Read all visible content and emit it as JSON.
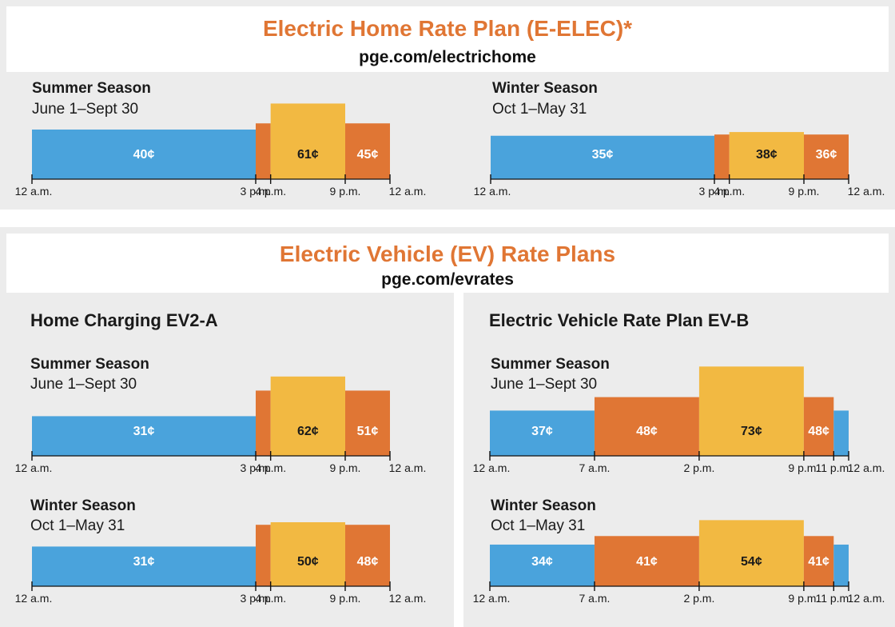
{
  "colors": {
    "off_peak": "#4aa3dc",
    "part_peak": "#e07634",
    "peak": "#f2b942",
    "title": "#e07634"
  },
  "elec": {
    "title": "Electric Home Rate Plan (E-ELEC)*",
    "url": "pge.com/electrichome"
  },
  "ev": {
    "title": "Electric Vehicle (EV) Rate Plans",
    "url": "pge.com/evrates",
    "ev2a_title": "Home Charging EV2-A",
    "evb_title": "Electric Vehicle Rate Plan EV-B"
  },
  "chart_data": [
    {
      "id": "elec-summer",
      "type": "bar",
      "title": "Summer Season",
      "subtitle": "June 1–Sept 30",
      "ticks": [
        {
          "hour": 0,
          "label": "12 a.m."
        },
        {
          "hour": 15,
          "label": "3 p.m."
        },
        {
          "hour": 16,
          "label": "4 p.m."
        },
        {
          "hour": 21,
          "label": "9 p.m."
        },
        {
          "hour": 24,
          "label": "12 a.m."
        }
      ],
      "segments": [
        {
          "start": 0,
          "end": 15,
          "value": 40,
          "label": "40¢",
          "tier": "off_peak"
        },
        {
          "start": 15,
          "end": 16,
          "value": 45,
          "label": "",
          "tier": "part_peak"
        },
        {
          "start": 16,
          "end": 21,
          "value": 61,
          "label": "61¢",
          "tier": "peak"
        },
        {
          "start": 21,
          "end": 24,
          "value": 45,
          "label": "45¢",
          "tier": "part_peak"
        }
      ]
    },
    {
      "id": "elec-winter",
      "type": "bar",
      "title": "Winter Season",
      "subtitle": "Oct 1–May 31",
      "ticks": [
        {
          "hour": 0,
          "label": "12 a.m."
        },
        {
          "hour": 15,
          "label": "3 p.m."
        },
        {
          "hour": 16,
          "label": "4 p.m."
        },
        {
          "hour": 21,
          "label": "9 p.m."
        },
        {
          "hour": 24,
          "label": "12 a.m."
        }
      ],
      "segments": [
        {
          "start": 0,
          "end": 15,
          "value": 35,
          "label": "35¢",
          "tier": "off_peak"
        },
        {
          "start": 15,
          "end": 16,
          "value": 36,
          "label": "",
          "tier": "part_peak"
        },
        {
          "start": 16,
          "end": 21,
          "value": 38,
          "label": "38¢",
          "tier": "peak"
        },
        {
          "start": 21,
          "end": 24,
          "value": 36,
          "label": "36¢",
          "tier": "part_peak"
        }
      ]
    },
    {
      "id": "ev2a-summer",
      "type": "bar",
      "title": "Summer Season",
      "subtitle": "June 1–Sept 30",
      "ticks": [
        {
          "hour": 0,
          "label": "12 a.m."
        },
        {
          "hour": 15,
          "label": "3 p.m."
        },
        {
          "hour": 16,
          "label": "4 p.m."
        },
        {
          "hour": 21,
          "label": "9 p.m."
        },
        {
          "hour": 24,
          "label": "12 a.m."
        }
      ],
      "segments": [
        {
          "start": 0,
          "end": 15,
          "value": 31,
          "label": "31¢",
          "tier": "off_peak"
        },
        {
          "start": 15,
          "end": 16,
          "value": 51,
          "label": "",
          "tier": "part_peak"
        },
        {
          "start": 16,
          "end": 21,
          "value": 62,
          "label": "62¢",
          "tier": "peak"
        },
        {
          "start": 21,
          "end": 24,
          "value": 51,
          "label": "51¢",
          "tier": "part_peak"
        }
      ]
    },
    {
      "id": "ev2a-winter",
      "type": "bar",
      "title": "Winter Season",
      "subtitle": "Oct 1–May 31",
      "ticks": [
        {
          "hour": 0,
          "label": "12 a.m."
        },
        {
          "hour": 15,
          "label": "3 p.m."
        },
        {
          "hour": 16,
          "label": "4 p.m."
        },
        {
          "hour": 21,
          "label": "9 p.m."
        },
        {
          "hour": 24,
          "label": "12 a.m."
        }
      ],
      "segments": [
        {
          "start": 0,
          "end": 15,
          "value": 31,
          "label": "31¢",
          "tier": "off_peak"
        },
        {
          "start": 15,
          "end": 16,
          "value": 48,
          "label": "",
          "tier": "part_peak"
        },
        {
          "start": 16,
          "end": 21,
          "value": 50,
          "label": "50¢",
          "tier": "peak"
        },
        {
          "start": 21,
          "end": 24,
          "value": 48,
          "label": "48¢",
          "tier": "part_peak"
        }
      ]
    },
    {
      "id": "evb-summer",
      "type": "bar",
      "title": "Summer Season",
      "subtitle": "June 1–Sept 30",
      "ticks": [
        {
          "hour": 0,
          "label": "12 a.m."
        },
        {
          "hour": 7,
          "label": "7 a.m."
        },
        {
          "hour": 14,
          "label": "2 p.m."
        },
        {
          "hour": 21,
          "label": "9 p.m."
        },
        {
          "hour": 23,
          "label": "11 p.m."
        },
        {
          "hour": 24,
          "label": "12 a.m."
        }
      ],
      "segments": [
        {
          "start": 0,
          "end": 7,
          "value": 37,
          "label": "37¢",
          "tier": "off_peak"
        },
        {
          "start": 7,
          "end": 14,
          "value": 48,
          "label": "48¢",
          "tier": "part_peak"
        },
        {
          "start": 14,
          "end": 21,
          "value": 73,
          "label": "73¢",
          "tier": "peak"
        },
        {
          "start": 21,
          "end": 23,
          "value": 48,
          "label": "48¢",
          "tier": "part_peak"
        },
        {
          "start": 23,
          "end": 24,
          "value": 37,
          "label": "",
          "tier": "off_peak"
        }
      ]
    },
    {
      "id": "evb-winter",
      "type": "bar",
      "title": "Winter Season",
      "subtitle": "Oct 1–May 31",
      "ticks": [
        {
          "hour": 0,
          "label": "12 a.m."
        },
        {
          "hour": 7,
          "label": "7 a.m."
        },
        {
          "hour": 14,
          "label": "2 p.m."
        },
        {
          "hour": 21,
          "label": "9 p.m."
        },
        {
          "hour": 23,
          "label": "11 p.m."
        },
        {
          "hour": 24,
          "label": "12 a.m."
        }
      ],
      "segments": [
        {
          "start": 0,
          "end": 7,
          "value": 34,
          "label": "34¢",
          "tier": "off_peak"
        },
        {
          "start": 7,
          "end": 14,
          "value": 41,
          "label": "41¢",
          "tier": "part_peak"
        },
        {
          "start": 14,
          "end": 21,
          "value": 54,
          "label": "54¢",
          "tier": "peak"
        },
        {
          "start": 21,
          "end": 23,
          "value": 41,
          "label": "41¢",
          "tier": "part_peak"
        },
        {
          "start": 23,
          "end": 24,
          "value": 34,
          "label": "",
          "tier": "off_peak"
        }
      ]
    }
  ]
}
